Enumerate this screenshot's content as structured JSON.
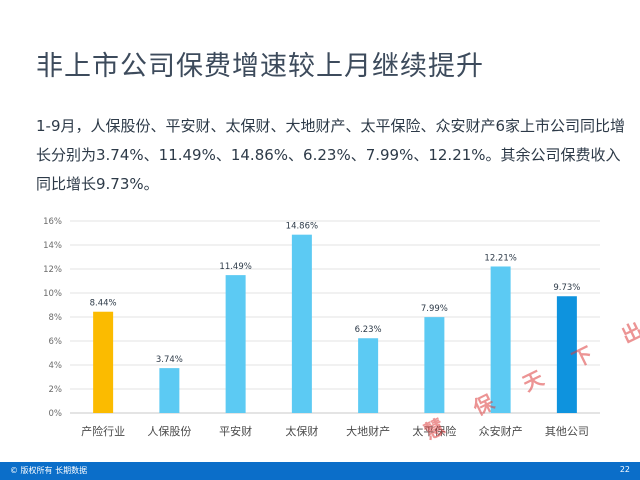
{
  "title": "非上市公司保费增速较上月继续提升",
  "body_text": "1-9月，人保股份、平安财、太保财、大地财产、太平保险、众安财产6家上市公司同比增长分别为3.74%、11.49%、14.86%、6.23%、7.99%、12.21%。其余公司保费收入同比增长9.73%。",
  "footer": {
    "copyright": "© 版权所有 长期数据",
    "page_number": "22"
  },
  "watermark": "慧 保 天 下 出 品",
  "colors": {
    "industry": "#fbbb00",
    "listed": "#5ccaf3",
    "others": "#0e93de",
    "footer": "#0b6ec9"
  },
  "chart_data": {
    "type": "bar",
    "categories": [
      "产险行业",
      "人保股份",
      "平安财",
      "太保财",
      "大地财产",
      "太平保险",
      "众安财产",
      "其他公司"
    ],
    "values": [
      8.44,
      3.74,
      11.49,
      14.86,
      6.23,
      7.99,
      12.21,
      9.73
    ],
    "data_labels": [
      "8.44%",
      "3.74%",
      "11.49%",
      "14.86%",
      "6.23%",
      "7.99%",
      "12.21%",
      "9.73%"
    ],
    "y_ticks": [
      "0%",
      "2%",
      "4%",
      "6%",
      "8%",
      "10%",
      "12%",
      "14%",
      "16%"
    ],
    "ylim": [
      0,
      16
    ],
    "grid": true,
    "title": "",
    "xlabel": "",
    "ylabel": ""
  }
}
